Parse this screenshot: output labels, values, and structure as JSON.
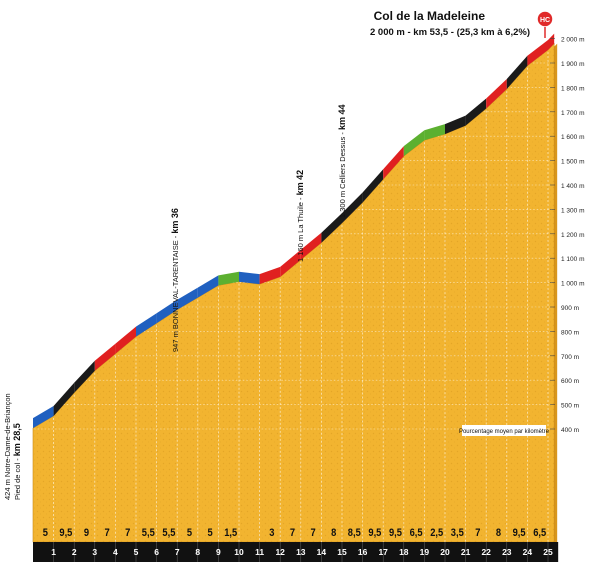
{
  "chart_data": {
    "type": "area",
    "title": "Col de la Madeleine",
    "subtitle": "2 000 m - km 53,5 - (25,3 km à 6,2%)",
    "category_badge": "HC",
    "legend_note": "Pourcentage moyen par kilomètre",
    "ylim": [
      400,
      2000
    ],
    "y_ticks": [
      "2 000 m",
      "1 900 m",
      "1 800 m",
      "1 700 m",
      "1 600 m",
      "1 500 m",
      "1 400 m",
      "1 300 m",
      "1 200 m",
      "1 100 m",
      "1 000 m",
      "900 m",
      "800 m",
      "700 m",
      "600 m",
      "500 m",
      "400 m"
    ],
    "y_tick_values": [
      2000,
      1900,
      1800,
      1700,
      1600,
      1500,
      1400,
      1300,
      1200,
      1100,
      1000,
      900,
      800,
      700,
      600,
      500,
      400
    ],
    "km_labels": [
      "1",
      "2",
      "3",
      "4",
      "5",
      "6",
      "7",
      "8",
      "9",
      "10",
      "11",
      "12",
      "13",
      "14",
      "15",
      "16",
      "17",
      "18",
      "19",
      "20",
      "21",
      "22",
      "23",
      "24",
      "25"
    ],
    "gradients": [
      "5",
      "9,5",
      "9",
      "7",
      "7",
      "5,5",
      "5,5",
      "5",
      "5",
      "1,5",
      "",
      "3",
      "7",
      "7",
      "8",
      "8,5",
      "9,5",
      "9,5",
      "6,5",
      "2,5",
      "3,5",
      "7",
      "8",
      "9,5",
      "6,5"
    ],
    "gradient_values": [
      5,
      9.5,
      9,
      7,
      7,
      5.5,
      5.5,
      5,
      5,
      1.5,
      -1,
      3,
      7,
      7,
      8,
      8.5,
      9.5,
      9.5,
      6.5,
      2.5,
      3.5,
      7,
      8,
      9.5,
      6.5
    ],
    "elevation_profile": {
      "km": [
        0,
        1,
        2,
        3,
        4,
        5,
        6,
        7,
        8,
        9,
        10,
        11,
        12,
        13,
        14,
        15,
        16,
        17,
        18,
        19,
        20,
        21,
        22,
        23,
        24,
        25,
        25.3
      ],
      "altitude_m": [
        424,
        474,
        569,
        659,
        729,
        799,
        854,
        909,
        959,
        1009,
        1024,
        1014,
        1044,
        1114,
        1184,
        1264,
        1349,
        1444,
        1539,
        1604,
        1629,
        1664,
        1734,
        1814,
        1909,
        1974,
        2000
      ]
    },
    "segment_colors": [
      "blue",
      "black",
      "black",
      "red",
      "red",
      "blue",
      "blue",
      "blue",
      "blue",
      "green",
      "blue",
      "red",
      "red",
      "red",
      "black",
      "black",
      "black",
      "red",
      "green",
      "green",
      "black",
      "black",
      "red",
      "black",
      "red"
    ],
    "color_map": {
      "blue": "#2060c0",
      "black": "#1a1a1a",
      "red": "#e02020",
      "green": "#5cb030"
    },
    "fill_color": "#f2b430",
    "annotations": [
      {
        "text": "424 m Notre-Dame-de-Briançon",
        "km_text": "",
        "km": 0
      },
      {
        "text": "Pied de col - ",
        "km_text": "km 28,5",
        "km": 0
      },
      {
        "text": "947 m BONNEVAL-TARENTAISE - ",
        "km_text": "km 36",
        "km": 7.5
      },
      {
        "text": "1 160 m La Thuile - ",
        "km_text": "km 42",
        "km": 13.5
      },
      {
        "text": "1 300 m Celliers Dessus - ",
        "km_text": "km 44",
        "km": 15.5
      }
    ]
  }
}
